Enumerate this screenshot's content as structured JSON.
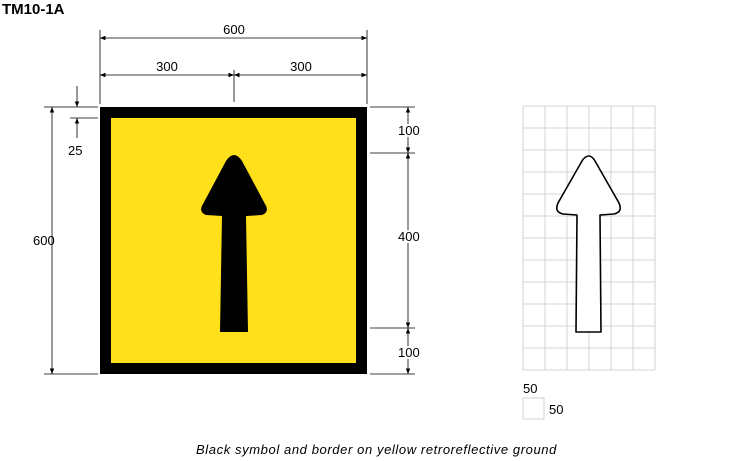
{
  "sign_code": "TM10-1A",
  "caption": "Black symbol and border on yellow retroreflective ground",
  "colors": {
    "ground": "#FFE01A",
    "border": "#000000",
    "symbol": "#000000",
    "grid_line": "#C8C8C8"
  },
  "dimensions": {
    "overall_width": "600",
    "half_width_left": "300",
    "half_width_right": "300",
    "overall_height": "600",
    "border_width": "25",
    "top_margin": "100",
    "symbol_height": "400",
    "bottom_margin": "100"
  },
  "grid": {
    "cell_height_label": "50",
    "cell_width_label": "50"
  },
  "icons": {
    "sign_symbol": "arrow-up-icon",
    "grid_symbol": "arrow-up-outline-icon"
  }
}
